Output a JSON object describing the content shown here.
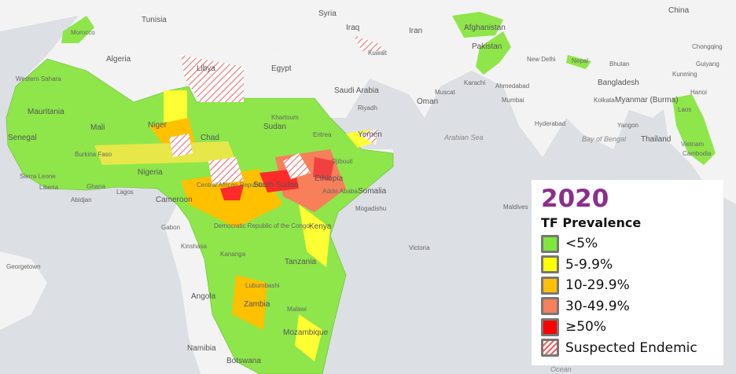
{
  "legend": {
    "year": "2020",
    "title": "TF Prevalence",
    "items": [
      {
        "label": "<5%",
        "color": "#7ee83a"
      },
      {
        "label": "5-9.9%",
        "color": "#ffff00"
      },
      {
        "label": "10-29.9%",
        "color": "#ffc000"
      },
      {
        "label": "30-49.9%",
        "color": "#f77f5a"
      },
      {
        "label": "≥50%",
        "color": "#ff0000"
      },
      {
        "label": "Suspected Endemic",
        "color": "hatched-red"
      }
    ]
  },
  "places": [
    "Morocco",
    "Tunisia",
    "Algeria",
    "Libya",
    "Egypt",
    "Syria",
    "Iraq",
    "Iran",
    "Kuwait",
    "Afghanistan",
    "Pakistan",
    "New Delhi",
    "Nepal",
    "Bhutan",
    "Bangladesh",
    "China",
    "Western Sahara",
    "Mauritania",
    "Mali",
    "Niger",
    "Chad",
    "Sudan",
    "Eritrea",
    "Yemen",
    "Djibouti",
    "Ethiopia",
    "Somalia",
    "Senegal",
    "Burkina Faso",
    "Nigeria",
    "Ghana",
    "Liberia",
    "Sierra Leone",
    "Cameroon",
    "Central African Republic",
    "South Sudan",
    "Kenya",
    "Gabon",
    "Democratic Republic of the Congo",
    "Tanzania",
    "Angola",
    "Zambia",
    "Malawi",
    "Mozambique",
    "Namibia",
    "Botswana",
    "Saudi Arabia",
    "Oman",
    "Arabian Sea",
    "Bay of Bengal",
    "Myanmar (Burma)",
    "Laos",
    "Thailand",
    "Vietnam",
    "Cambodia",
    "Maldives",
    "Karachi",
    "Ahmedabad",
    "Mumbai",
    "Hyderabad",
    "Kolkata",
    "Yangon",
    "Kunming",
    "Guiyang",
    "Chongqing",
    "Hanoi",
    "Muscat",
    "Riyadh",
    "Khartoum",
    "Addis Ababa",
    "Mogadishu",
    "Kinshasa",
    "Kananga",
    "Lubumbashi",
    "Abidjan",
    "Lagos",
    "Victoria",
    "Georgetown",
    "Ocean"
  ]
}
